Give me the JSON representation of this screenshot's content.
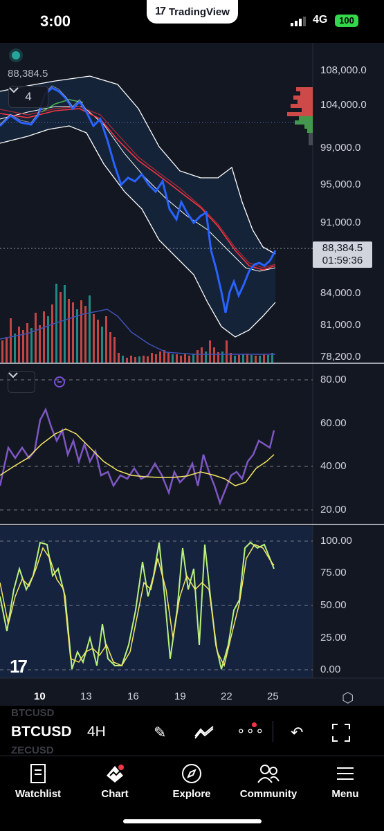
{
  "status_bar": {
    "time": "3:00",
    "carrier_app": "TradingView",
    "network": "4G",
    "battery": "100"
  },
  "chart": {
    "last_price": "88,384.5",
    "price_label": "88,384.5",
    "countdown": "01:59:36",
    "indicator_count": "4",
    "price_axis": [
      "108,000.0",
      "104,000.0",
      "99,000.0",
      "95,000.0",
      "91,000.0",
      "84,000.0",
      "81,000.0",
      "78,200.0"
    ],
    "rsi_axis": [
      "80.00",
      "60.00",
      "40.00",
      "20.00"
    ],
    "stoch_axis": [
      "100.00",
      "75.00",
      "50.00",
      "25.00",
      "0.00"
    ],
    "date_axis": [
      "10",
      "13",
      "16",
      "19",
      "22",
      "25"
    ]
  },
  "chart_data": [
    {
      "type": "line",
      "pane": "price",
      "x": [
        "10",
        "13",
        "16",
        "19",
        "22",
        "25"
      ],
      "series": [
        {
          "values": [
            104500,
            102000,
            95500,
            91000,
            80500,
            88384.5
          ]
        }
      ],
      "ylim": [
        78200,
        108000
      ],
      "last_value": 88384.5,
      "colors": {
        "up": "#2962ff",
        "down": "#2962ff",
        "ema": "#f23645",
        "bands": "#ffffff",
        "volume_up": "#26a69a",
        "volume_down": "#ef5350"
      }
    },
    {
      "type": "line",
      "pane": "rsi",
      "series": [
        {
          "values": [
            38,
            48,
            67,
            58,
            45,
            52,
            40,
            35,
            42,
            38,
            48,
            30,
            35,
            42,
            55
          ]
        },
        {
          "values": [
            38,
            45,
            58,
            55,
            46,
            40,
            38,
            36,
            37,
            38,
            37,
            36,
            34,
            40,
            46
          ]
        }
      ],
      "ylim": [
        20,
        80
      ],
      "colors": [
        "#7e57c2",
        "#f5e663"
      ]
    },
    {
      "type": "line",
      "pane": "stochastic",
      "series": [
        {
          "values": [
            82,
            40,
            100,
            55,
            15,
            80,
            5,
            60,
            100,
            10,
            97,
            5,
            95,
            50,
            100,
            82
          ]
        }
      ],
      "ylim": [
        0,
        100
      ],
      "colors": [
        "#b9f27c",
        "#f5e663"
      ]
    }
  ],
  "toolbar": {
    "ghost_top": "BTCUSD",
    "symbol": "BTCUSD",
    "ghost_bottom": "ZECUSD",
    "timeframe": "4H"
  },
  "tabs": [
    {
      "label": "Watchlist"
    },
    {
      "label": "Chart"
    },
    {
      "label": "Explore"
    },
    {
      "label": "Community"
    },
    {
      "label": "Menu"
    }
  ]
}
